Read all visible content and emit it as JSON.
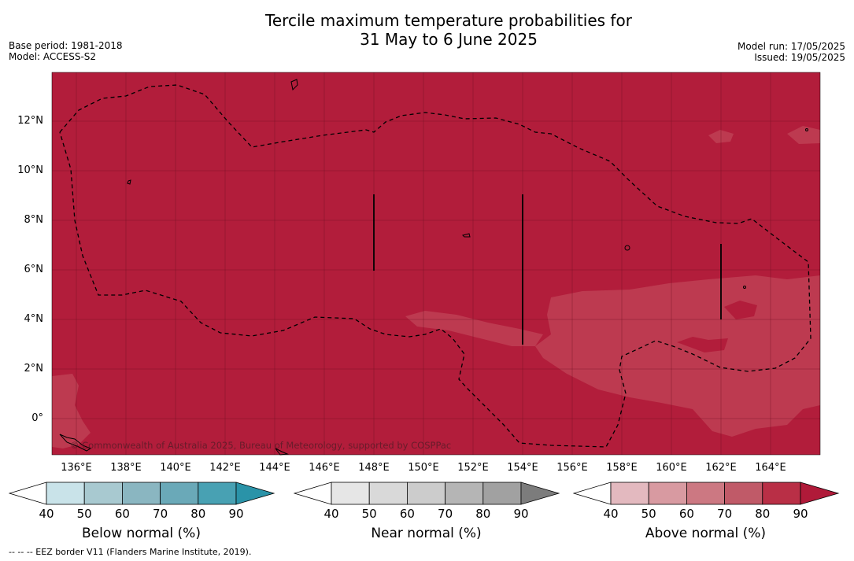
{
  "title_line1": "Tercile maximum temperature probabilities for",
  "title_line2": "31 May to 6 June 2025",
  "base_period": "Base period: 1981-2018",
  "model": "Model: ACCESS-S2",
  "model_run": "Model run: 17/05/2025",
  "issued": "Issued: 19/05/2025",
  "copyright": "© Commonwealth of Australia 2025, Bureau of Meteorology, supported by COSPPac",
  "footnote": "--  --  -- EEZ border V11 (Flanders Marine Institute, 2019).",
  "lat_labels": [
    "12°N",
    "10°N",
    "8°N",
    "6°N",
    "4°N",
    "2°N",
    "0°"
  ],
  "lon_labels": [
    "136°E",
    "138°E",
    "140°E",
    "142°E",
    "144°E",
    "146°E",
    "148°E",
    "150°E",
    "152°E",
    "154°E",
    "156°E",
    "158°E",
    "160°E",
    "162°E",
    "164°E"
  ],
  "colorbars": [
    {
      "title": "Below normal (%)",
      "ticks": [
        "40",
        "50",
        "60",
        "70",
        "80",
        "90"
      ],
      "colors": [
        "#ffffff",
        "#c9e3e9",
        "#a8c9d0",
        "#8ab6c1",
        "#6aa9b8",
        "#48a1b3",
        "#2a93a8"
      ]
    },
    {
      "title": "Near normal (%)",
      "ticks": [
        "40",
        "50",
        "60",
        "70",
        "80",
        "90"
      ],
      "colors": [
        "#ffffff",
        "#e6e6e6",
        "#d9d9d9",
        "#cccccc",
        "#b5b5b5",
        "#a1a1a1",
        "#7c7c7c"
      ]
    },
    {
      "title": "Above normal (%)",
      "ticks": [
        "40",
        "50",
        "60",
        "70",
        "80",
        "90"
      ],
      "colors": [
        "#ffffff",
        "#e3b9bf",
        "#d89aa1",
        "#cc7882",
        "#c05a68",
        "#b92f46",
        "#b01a39"
      ]
    }
  ],
  "map_colors": {
    "main": "#b21d3b",
    "lighter": "#bd3a50"
  }
}
